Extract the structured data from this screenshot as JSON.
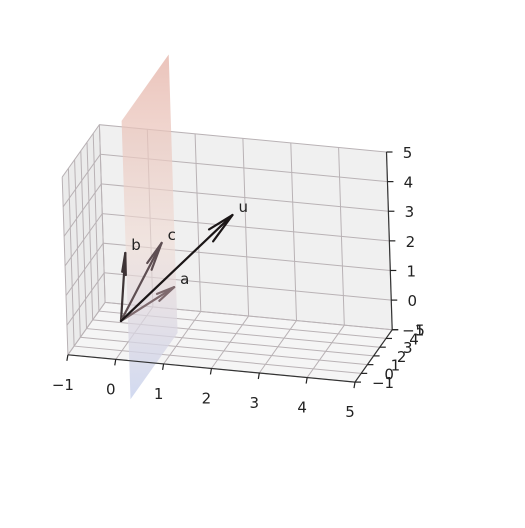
{
  "chart_data": {
    "type": "3d-vector",
    "title": "",
    "xlim": [
      -1,
      5
    ],
    "ylim": [
      -1,
      5
    ],
    "zlim": [
      -1,
      5
    ],
    "x_ticks": [
      "−1",
      "0",
      "1",
      "2",
      "3",
      "4",
      "5"
    ],
    "y_ticks": [
      "−1",
      "0",
      "1",
      "2",
      "3",
      "4",
      "5"
    ],
    "z_ticks": [
      "−1",
      "0",
      "1",
      "2",
      "3",
      "4",
      "5"
    ],
    "grid": true,
    "plane": {
      "description": "vertical plane x = 0.5",
      "colormap": [
        "#c9d3ee",
        "#f2d8cf",
        "#e8b9ae"
      ]
    },
    "vectors": [
      {
        "name": "a",
        "from": [
          0,
          0,
          0
        ],
        "to": [
          1,
          1,
          1
        ],
        "color": "#7e6a6e"
      },
      {
        "name": "b",
        "from": [
          0,
          0,
          0
        ],
        "to": [
          0,
          1,
          2
        ],
        "color": "#3d3335"
      },
      {
        "name": "c",
        "from": [
          0,
          0,
          0
        ],
        "to": [
          0.7,
          1.5,
          2.3
        ],
        "color": "#5e4e52"
      },
      {
        "name": "u",
        "from": [
          0,
          0,
          0
        ],
        "to": [
          2,
          3,
          3
        ],
        "color": "#1b1617"
      }
    ]
  }
}
